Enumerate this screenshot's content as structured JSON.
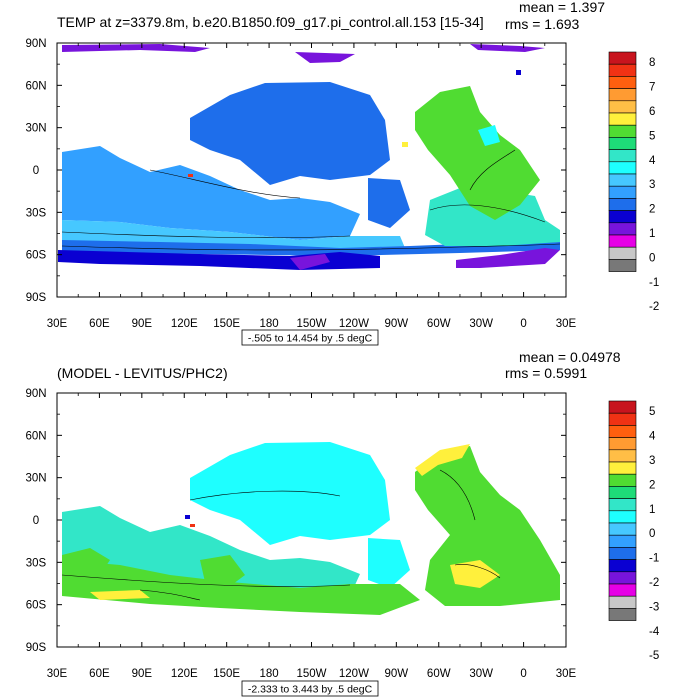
{
  "chart_data": [
    {
      "type": "heatmap",
      "title": "TEMP at z=3379.8m, b.e20.B1850.f09_g17.pi_control.all.153 [15-34]",
      "stats": {
        "mean": "mean = 1.397",
        "rms": "rms = 1.693"
      },
      "contour_info": "-.505 to 14.454 by .5 degC",
      "x_ticks": [
        "30E",
        "60E",
        "90E",
        "120E",
        "150E",
        "180",
        "150W",
        "120W",
        "90W",
        "60W",
        "30W",
        "0",
        "30E"
      ],
      "y_ticks": [
        "90N",
        "60N",
        "30N",
        "0",
        "30S",
        "60S",
        "90S"
      ],
      "colorbar": {
        "labels": [
          "8",
          "7",
          "6",
          "5",
          "4",
          "3",
          "2",
          "1",
          "0",
          "-1",
          "-2"
        ],
        "colors": [
          "#C8141E",
          "#F03214",
          "#FF5F0F",
          "#FF9B32",
          "#FFBE46",
          "#FFF03C",
          "#50DC32",
          "#1EDC78",
          "#32E6C8",
          "#1EFFFF",
          "#46C8FF",
          "#32A0FF",
          "#1E6EEB",
          "#0A00D2",
          "#7814DC",
          "#E600E6",
          "#C8C8C8",
          "#787878"
        ]
      },
      "fields": {
        "arctic": "#7814DC",
        "north_pacific": "#1E6EEB",
        "indo_pacific": "#32A0FF",
        "south_pacific": "#46C8FF",
        "southern_ocean": "#0A00D2",
        "antarctic_shelf": "#7814DC",
        "atlantic": "#32E6C8",
        "north_atlantic": "#50DC32"
      }
    },
    {
      "type": "heatmap",
      "title": "(MODEL - LEVITUS/PHC2)",
      "stats": {
        "mean": "mean = 0.04978",
        "rms": "rms = 0.5991"
      },
      "contour_info": "-2.333 to 3.443 by .5 degC",
      "x_ticks": [
        "30E",
        "60E",
        "90E",
        "120E",
        "150E",
        "180",
        "150W",
        "120W",
        "90W",
        "60W",
        "30W",
        "0",
        "30E"
      ],
      "y_ticks": [
        "90N",
        "60N",
        "30N",
        "0",
        "30S",
        "60S",
        "90S"
      ],
      "colorbar": {
        "labels": [
          "5",
          "4",
          "3",
          "2",
          "1",
          "0",
          "-1",
          "-2",
          "-3",
          "-4",
          "-5"
        ],
        "colors": [
          "#C8141E",
          "#F03214",
          "#FF5F0F",
          "#FF9B32",
          "#FFBE46",
          "#FFF03C",
          "#50DC32",
          "#1EDC78",
          "#32E6C8",
          "#1EFFFF",
          "#46C8FF",
          "#32A0FF",
          "#1E6EEB",
          "#0A00D2",
          "#7814DC",
          "#E600E6",
          "#C8C8C8",
          "#787878"
        ]
      },
      "fields": {
        "indo_pacific": "#32E6C8",
        "north_pacific": "#1EFFFF",
        "southern_ocean": "#50DC32",
        "atlantic": "#50DC32",
        "north_atlantic_edge": "#FFF03C"
      }
    }
  ]
}
